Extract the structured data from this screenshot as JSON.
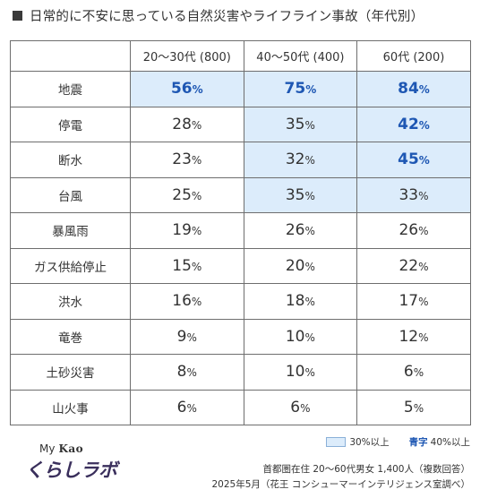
{
  "title": "日常的に不安に思っている自然災害やライフライン事故（年代別）",
  "chart_data": {
    "type": "table",
    "columns": [
      "20〜30代 (800)",
      "40〜50代 (400)",
      "60代 (200)"
    ],
    "rows": [
      {
        "label": "地震",
        "values": [
          56,
          75,
          84
        ]
      },
      {
        "label": "停電",
        "values": [
          28,
          35,
          42
        ]
      },
      {
        "label": "断水",
        "values": [
          23,
          32,
          45
        ]
      },
      {
        "label": "台風",
        "values": [
          25,
          35,
          33
        ]
      },
      {
        "label": "暴風雨",
        "values": [
          19,
          26,
          26
        ]
      },
      {
        "label": "ガス供給停止",
        "values": [
          15,
          20,
          22
        ]
      },
      {
        "label": "洪水",
        "values": [
          16,
          18,
          17
        ]
      },
      {
        "label": "竜巻",
        "values": [
          9,
          10,
          12
        ]
      },
      {
        "label": "土砂災害",
        "values": [
          8,
          10,
          6
        ]
      },
      {
        "label": "山火事",
        "values": [
          6,
          6,
          5
        ]
      }
    ],
    "unit": "%",
    "highlight_threshold": 30,
    "blue_threshold": 40
  },
  "legend": {
    "highlight_label": "30%以上",
    "blue_word": "青字",
    "blue_label": "40%以上"
  },
  "footnote": {
    "line1": "首都圏在住 20〜60代男女 1,400人（複数回答）",
    "line2": "2025年5月（花王 コンシューマーインテリジェンス室調べ）"
  },
  "logo": {
    "top_my": "My",
    "top_kao": "Kao",
    "main": "くらしラボ"
  },
  "colors": {
    "highlight_bg": "#dcecfb",
    "blue_text": "#1e57b3",
    "border": "#6e6e6e"
  }
}
